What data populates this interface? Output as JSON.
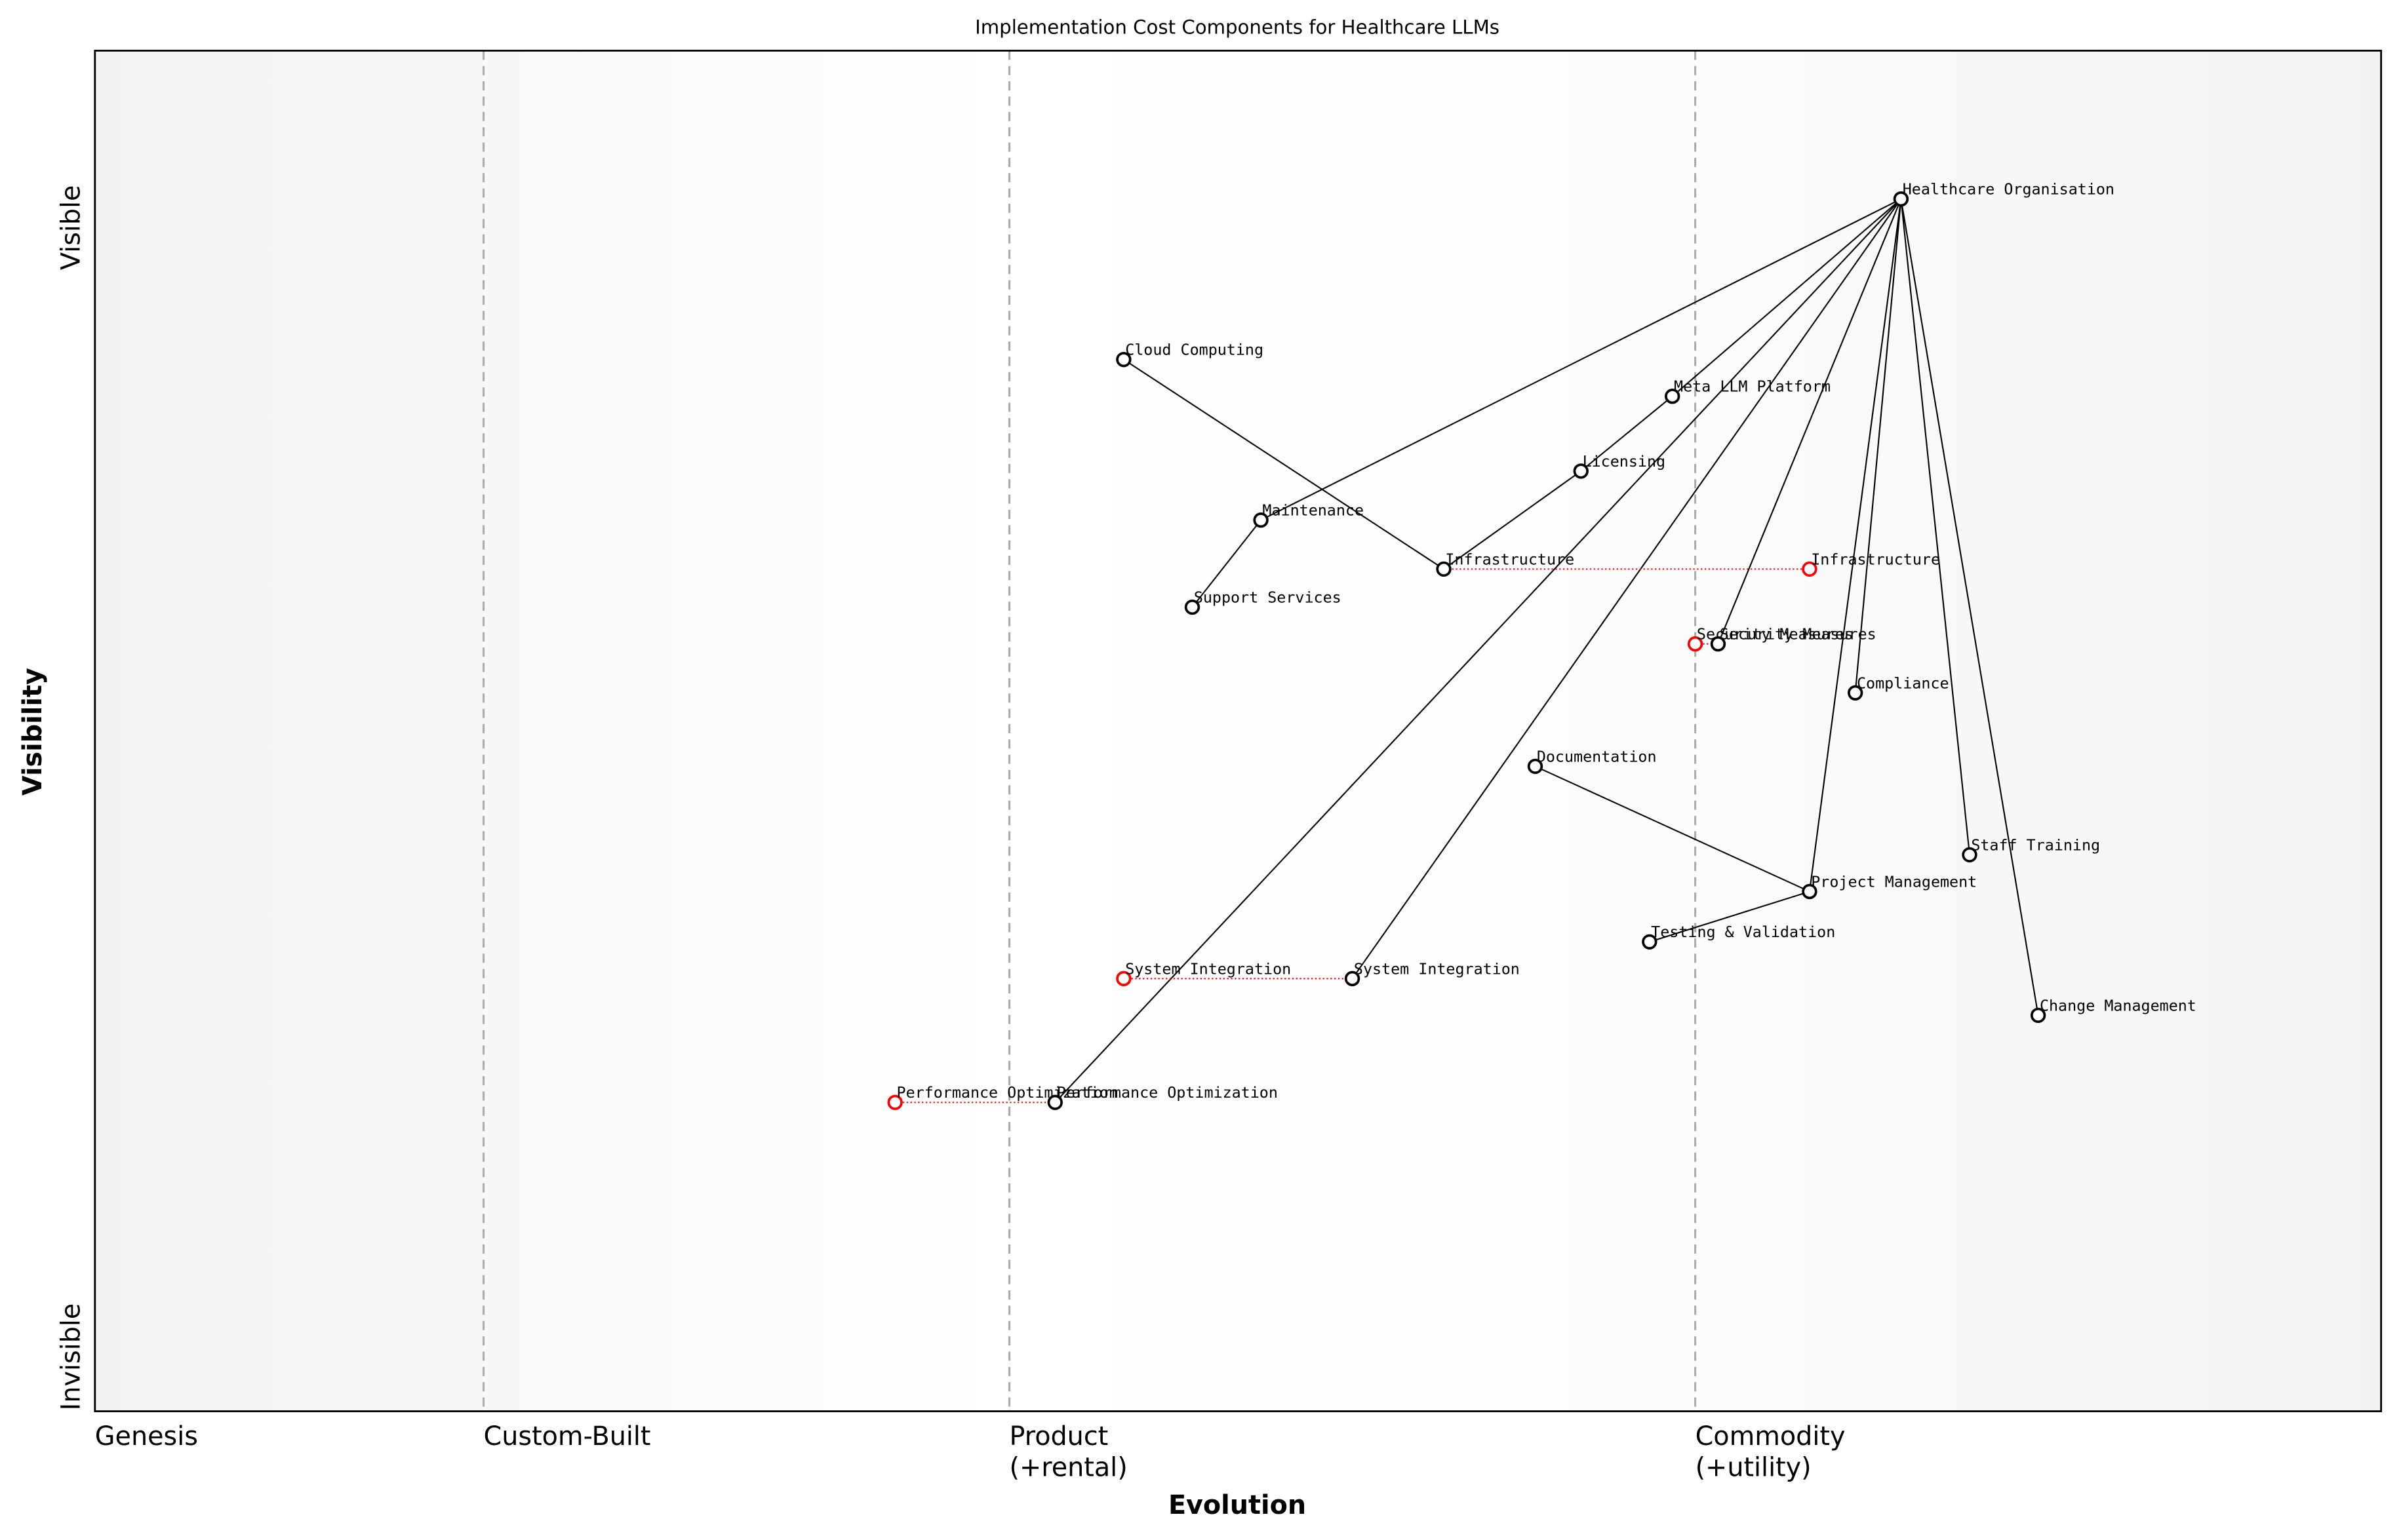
{
  "chart_data": {
    "type": "wardley",
    "title": "Implementation Cost Components for Healthcare LLMs",
    "x_label": "Evolution",
    "y_label": "Visibility",
    "xlim": [
      0,
      1
    ],
    "ylim": [
      0,
      1
    ],
    "xticks": [
      {
        "value": 0,
        "label": "Genesis"
      },
      {
        "value": 0.17,
        "label": "Custom-Built"
      },
      {
        "value": 0.4,
        "label": "Product\n(+rental)"
      },
      {
        "value": 0.7,
        "label": "Commodity\n(+utility)"
      }
    ],
    "yticks": [
      {
        "value": 0.04,
        "label": "Invisible"
      },
      {
        "value": 0.87,
        "label": "Visible"
      }
    ],
    "stage_lines": true,
    "link_color": "#000000",
    "evolve_color": "#ff0000",
    "nodes": [
      {
        "name": "Healthcare Organisation",
        "x": 0.79,
        "y": 0.891
      },
      {
        "name": "Cloud Computing",
        "x": 0.45,
        "y": 0.773
      },
      {
        "name": "Meta LLM Platform",
        "x": 0.69,
        "y": 0.746
      },
      {
        "name": "Licensing",
        "x": 0.65,
        "y": 0.691
      },
      {
        "name": "Maintenance",
        "x": 0.51,
        "y": 0.655
      },
      {
        "name": "Infrastructure",
        "x": 0.59,
        "y": 0.619
      },
      {
        "name": "Infrastructure",
        "x": 0.75,
        "y": 0.619,
        "evolved": true
      },
      {
        "name": "Support Services",
        "x": 0.48,
        "y": 0.591
      },
      {
        "name": "Security Measures",
        "x": 0.7,
        "y": 0.564,
        "evolved": true
      },
      {
        "name": "Security Measures",
        "x": 0.71,
        "y": 0.564
      },
      {
        "name": "Compliance",
        "x": 0.77,
        "y": 0.528
      },
      {
        "name": "Documentation",
        "x": 0.63,
        "y": 0.474
      },
      {
        "name": "Staff Training",
        "x": 0.82,
        "y": 0.409
      },
      {
        "name": "Project Management",
        "x": 0.75,
        "y": 0.382
      },
      {
        "name": "Testing & Validation",
        "x": 0.68,
        "y": 0.345
      },
      {
        "name": "System Integration",
        "x": 0.45,
        "y": 0.318,
        "evolved": true
      },
      {
        "name": "System Integration",
        "x": 0.55,
        "y": 0.318
      },
      {
        "name": "Change Management",
        "x": 0.85,
        "y": 0.291
      },
      {
        "name": "Performance Optimization",
        "x": 0.35,
        "y": 0.227,
        "evolved": true
      },
      {
        "name": "Performance Optimization",
        "x": 0.42,
        "y": 0.227
      }
    ],
    "links": [
      [
        "Healthcare Organisation",
        "Maintenance"
      ],
      [
        "Healthcare Organisation",
        "Meta LLM Platform"
      ],
      [
        "Meta LLM Platform",
        "Licensing"
      ],
      [
        "Licensing",
        "Infrastructure"
      ],
      [
        "Healthcare Organisation",
        "Performance Optimization"
      ],
      [
        "Healthcare Organisation",
        "System Integration"
      ],
      [
        "Healthcare Organisation",
        "Security Measures"
      ],
      [
        "Healthcare Organisation",
        "Compliance"
      ],
      [
        "Healthcare Organisation",
        "Project Management"
      ],
      [
        "Healthcare Organisation",
        "Staff Training"
      ],
      [
        "Healthcare Organisation",
        "Change Management"
      ],
      [
        "Cloud Computing",
        "Infrastructure"
      ],
      [
        "Maintenance",
        "Support Services"
      ],
      [
        "Documentation",
        "Project Management"
      ],
      [
        "Testing & Validation",
        "Project Management"
      ]
    ]
  }
}
